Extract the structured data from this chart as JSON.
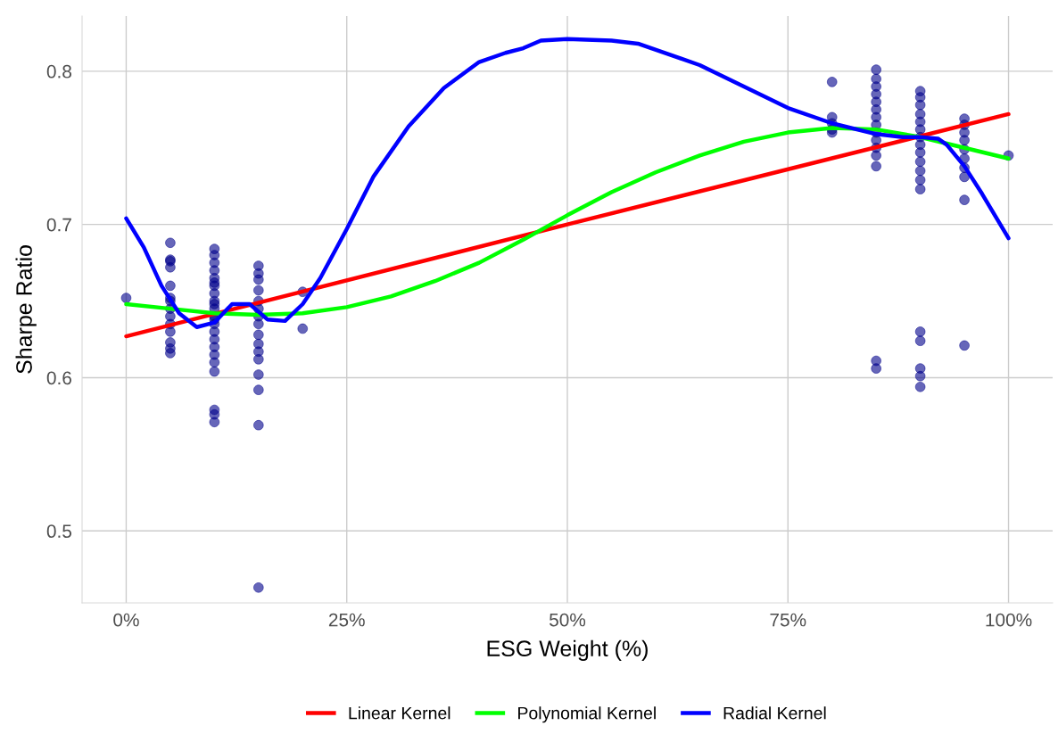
{
  "chart_data": {
    "type": "scatter",
    "xlabel": "ESG Weight (%)",
    "ylabel": "Sharpe Ratio",
    "xticks": [
      {
        "value": 0,
        "label": "0%"
      },
      {
        "value": 25,
        "label": "25%"
      },
      {
        "value": 50,
        "label": "50%"
      },
      {
        "value": 75,
        "label": "75%"
      },
      {
        "value": 100,
        "label": "100%"
      }
    ],
    "xlim": [
      -5,
      105
    ],
    "ylim": [
      0.453,
      0.836
    ],
    "yticks": [
      0.5,
      0.6,
      0.7,
      0.8
    ],
    "grid": true,
    "legend": "bottom",
    "series": [
      {
        "color": "#00008b",
        "marker": "circle",
        "x": [
          0,
          5,
          5,
          5,
          5,
          5,
          5,
          5,
          5,
          5,
          5,
          5,
          5,
          5,
          5,
          10,
          10,
          10,
          10,
          10,
          10,
          10,
          10,
          10,
          10,
          10,
          10,
          10,
          10,
          10,
          10,
          10,
          10,
          10,
          10,
          10,
          10,
          10,
          15,
          15,
          15,
          15,
          15,
          15,
          15,
          15,
          15,
          15,
          15,
          15,
          15,
          15,
          15,
          15,
          20,
          20,
          80,
          80,
          80,
          80,
          80,
          85,
          85,
          85,
          85,
          85,
          85,
          85,
          85,
          85,
          85,
          85,
          85,
          85,
          85,
          85,
          90,
          90,
          90,
          90,
          90,
          90,
          90,
          90,
          90,
          90,
          90,
          90,
          90,
          90,
          90,
          90,
          90,
          90,
          95,
          95,
          95,
          95,
          95,
          95,
          95,
          95,
          95,
          95,
          100
        ],
        "values": [
          0.652,
          0.688,
          0.677,
          0.676,
          0.672,
          0.66,
          0.652,
          0.65,
          0.645,
          0.64,
          0.635,
          0.63,
          0.623,
          0.619,
          0.616,
          0.684,
          0.68,
          0.675,
          0.67,
          0.665,
          0.66,
          0.655,
          0.65,
          0.645,
          0.64,
          0.635,
          0.63,
          0.625,
          0.62,
          0.615,
          0.61,
          0.604,
          0.579,
          0.576,
          0.571,
          0.662,
          0.648,
          0.638,
          0.673,
          0.668,
          0.664,
          0.657,
          0.65,
          0.645,
          0.64,
          0.635,
          0.628,
          0.622,
          0.617,
          0.612,
          0.602,
          0.592,
          0.569,
          0.463,
          0.656,
          0.632,
          0.793,
          0.77,
          0.766,
          0.762,
          0.76,
          0.801,
          0.795,
          0.79,
          0.785,
          0.78,
          0.775,
          0.77,
          0.765,
          0.76,
          0.755,
          0.75,
          0.745,
          0.738,
          0.611,
          0.606,
          0.787,
          0.783,
          0.778,
          0.772,
          0.767,
          0.762,
          0.757,
          0.752,
          0.747,
          0.741,
          0.735,
          0.729,
          0.723,
          0.63,
          0.624,
          0.606,
          0.601,
          0.594,
          0.769,
          0.765,
          0.76,
          0.755,
          0.749,
          0.743,
          0.737,
          0.731,
          0.716,
          0.621,
          0.745
        ]
      },
      {
        "type": "line",
        "name": "Linear Kernel",
        "color": "#ff0000",
        "x": [
          0,
          50,
          100
        ],
        "values": [
          0.627,
          0.7,
          0.772
        ]
      },
      {
        "type": "line",
        "name": "Polynomial Kernel",
        "color": "#00ff00",
        "x": [
          0,
          5,
          10,
          15,
          20,
          25,
          30,
          35,
          40,
          45,
          50,
          55,
          60,
          65,
          70,
          75,
          80,
          85,
          90,
          95,
          100
        ],
        "values": [
          0.648,
          0.645,
          0.642,
          0.641,
          0.642,
          0.646,
          0.653,
          0.663,
          0.675,
          0.69,
          0.706,
          0.721,
          0.734,
          0.745,
          0.754,
          0.76,
          0.763,
          0.762,
          0.757,
          0.75,
          0.743
        ]
      },
      {
        "type": "line",
        "name": "Radial Kernel",
        "color": "#0000ff",
        "x": [
          0,
          2,
          4,
          6,
          8,
          10,
          11,
          12,
          14,
          16,
          18,
          20,
          22,
          25,
          28,
          32,
          36,
          40,
          43,
          45,
          47,
          50,
          55,
          58,
          62,
          65,
          70,
          75,
          80,
          85,
          88,
          90,
          92,
          93,
          95,
          97,
          100
        ],
        "values": [
          0.704,
          0.685,
          0.66,
          0.642,
          0.633,
          0.636,
          0.642,
          0.648,
          0.648,
          0.638,
          0.637,
          0.648,
          0.665,
          0.697,
          0.731,
          0.764,
          0.789,
          0.806,
          0.812,
          0.815,
          0.82,
          0.821,
          0.82,
          0.818,
          0.81,
          0.804,
          0.79,
          0.776,
          0.766,
          0.759,
          0.757,
          0.757,
          0.756,
          0.752,
          0.738,
          0.72,
          0.691
        ]
      }
    ]
  }
}
